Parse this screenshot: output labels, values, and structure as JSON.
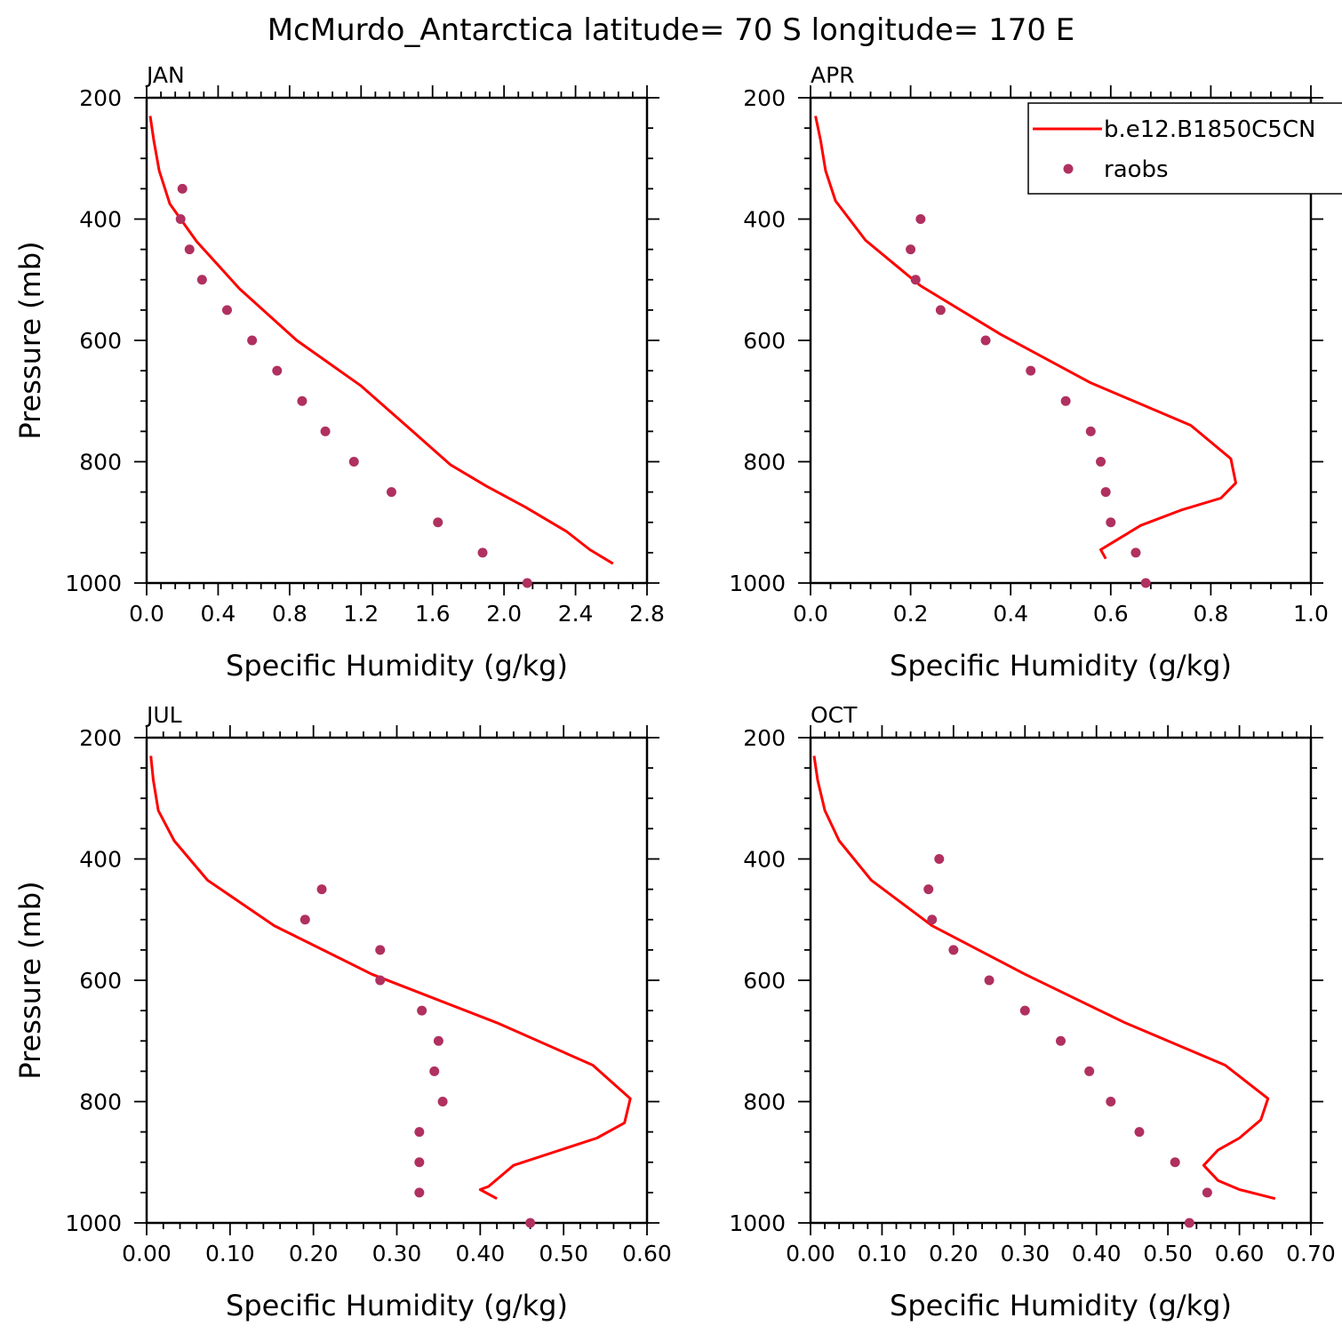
{
  "figure": {
    "title": "McMurdo_Antarctica  latitude= 70 S longitude= 170 E"
  },
  "legend": {
    "placement": "top-right of APR panel",
    "model_label": "b.e12.B1850C5CN",
    "obs_label": "raobs"
  },
  "colors": {
    "model_line": "#ff0000",
    "obs_marker": "#b03060",
    "axis": "#000000"
  },
  "chart_data": [
    {
      "type": "line",
      "panel_title": "JAN",
      "xlabel": "Specific Humidity (g/kg)",
      "ylabel": "Pressure (mb)",
      "xlim": [
        0.0,
        2.8
      ],
      "ylim": [
        1000,
        200
      ],
      "y_inverted": true,
      "xticks": [
        "0.0",
        "0.4",
        "0.8",
        "1.2",
        "1.6",
        "2.0",
        "2.4",
        "2.8"
      ],
      "yticks": [
        "200",
        "400",
        "600",
        "800",
        "1000"
      ],
      "series": [
        {
          "name": "b.e12.B1850C5CN",
          "kind": "line",
          "x": [
            0.02,
            0.04,
            0.07,
            0.13,
            0.28,
            0.52,
            0.84,
            1.2,
            1.47,
            1.7,
            1.9,
            2.12,
            2.35,
            2.48,
            2.61
          ],
          "y": [
            230,
            270,
            320,
            375,
            437,
            515,
            600,
            675,
            745,
            805,
            840,
            875,
            915,
            945,
            968
          ]
        },
        {
          "name": "raobs",
          "kind": "scatter",
          "x": [
            0.2,
            0.19,
            0.24,
            0.31,
            0.45,
            0.59,
            0.73,
            0.87,
            1.0,
            1.16,
            1.37,
            1.63,
            1.88,
            2.13
          ],
          "y": [
            350,
            400,
            450,
            500,
            550,
            600,
            650,
            700,
            750,
            800,
            850,
            900,
            950,
            1000
          ]
        }
      ]
    },
    {
      "type": "line",
      "panel_title": "APR",
      "xlabel": "Specific Humidity (g/kg)",
      "ylabel": "",
      "xlim": [
        0.0,
        1.0
      ],
      "ylim": [
        1000,
        200
      ],
      "y_inverted": true,
      "xticks": [
        "0.0",
        "0.2",
        "0.4",
        "0.6",
        "0.8",
        "1.0"
      ],
      "yticks": [
        "200",
        "400",
        "600",
        "800",
        "1000"
      ],
      "series": [
        {
          "name": "b.e12.B1850C5CN",
          "kind": "line",
          "x": [
            0.01,
            0.02,
            0.03,
            0.05,
            0.11,
            0.22,
            0.38,
            0.56,
            0.76,
            0.84,
            0.85,
            0.82,
            0.74,
            0.66,
            0.62,
            0.58,
            0.59
          ],
          "y": [
            230,
            270,
            320,
            370,
            435,
            510,
            590,
            670,
            740,
            795,
            835,
            860,
            880,
            905,
            925,
            945,
            960
          ]
        },
        {
          "name": "raobs",
          "kind": "scatter",
          "x": [
            0.22,
            0.2,
            0.21,
            0.26,
            0.35,
            0.44,
            0.51,
            0.56,
            0.58,
            0.59,
            0.6,
            0.65,
            0.67
          ],
          "y": [
            400,
            450,
            500,
            550,
            600,
            650,
            700,
            750,
            800,
            850,
            900,
            950,
            1000
          ]
        }
      ]
    },
    {
      "type": "line",
      "panel_title": "JUL",
      "xlabel": "Specific Humidity (g/kg)",
      "ylabel": "Pressure (mb)",
      "xlim": [
        0.0,
        0.6
      ],
      "ylim": [
        1000,
        200
      ],
      "y_inverted": true,
      "xticks": [
        "0.00",
        "0.10",
        "0.20",
        "0.30",
        "0.40",
        "0.50",
        "0.60"
      ],
      "yticks": [
        "200",
        "400",
        "600",
        "800",
        "1000"
      ],
      "series": [
        {
          "name": "b.e12.B1850C5CN",
          "kind": "line",
          "x": [
            0.005,
            0.008,
            0.014,
            0.033,
            0.073,
            0.153,
            0.27,
            0.42,
            0.535,
            0.58,
            0.573,
            0.54,
            0.44,
            0.41,
            0.4,
            0.42
          ],
          "y": [
            230,
            270,
            320,
            370,
            435,
            510,
            590,
            670,
            740,
            795,
            835,
            860,
            905,
            940,
            945,
            960
          ]
        },
        {
          "name": "raobs",
          "kind": "scatter",
          "x": [
            0.21,
            0.19,
            0.28,
            0.28,
            0.33,
            0.35,
            0.345,
            0.355,
            0.327,
            0.327,
            0.327,
            0.46
          ],
          "y": [
            450,
            500,
            550,
            600,
            650,
            700,
            750,
            800,
            850,
            900,
            950,
            1000
          ]
        }
      ]
    },
    {
      "type": "line",
      "panel_title": "OCT",
      "xlabel": "Specific Humidity (g/kg)",
      "ylabel": "",
      "xlim": [
        0.0,
        0.7
      ],
      "ylim": [
        1000,
        200
      ],
      "y_inverted": true,
      "xticks": [
        "0.00",
        "0.10",
        "0.20",
        "0.30",
        "0.40",
        "0.50",
        "0.60",
        "0.70"
      ],
      "yticks": [
        "200",
        "400",
        "600",
        "800",
        "1000"
      ],
      "series": [
        {
          "name": "b.e12.B1850C5CN",
          "kind": "line",
          "x": [
            0.005,
            0.01,
            0.02,
            0.04,
            0.085,
            0.17,
            0.3,
            0.44,
            0.58,
            0.64,
            0.63,
            0.6,
            0.57,
            0.55,
            0.57,
            0.6,
            0.65
          ],
          "y": [
            230,
            270,
            320,
            370,
            435,
            510,
            590,
            670,
            740,
            795,
            830,
            860,
            880,
            905,
            930,
            945,
            960
          ]
        },
        {
          "name": "raobs",
          "kind": "scatter",
          "x": [
            0.18,
            0.165,
            0.17,
            0.2,
            0.25,
            0.3,
            0.35,
            0.39,
            0.42,
            0.46,
            0.51,
            0.555,
            0.53
          ],
          "y": [
            400,
            450,
            500,
            550,
            600,
            650,
            700,
            750,
            800,
            850,
            900,
            950,
            1000
          ]
        }
      ]
    }
  ]
}
